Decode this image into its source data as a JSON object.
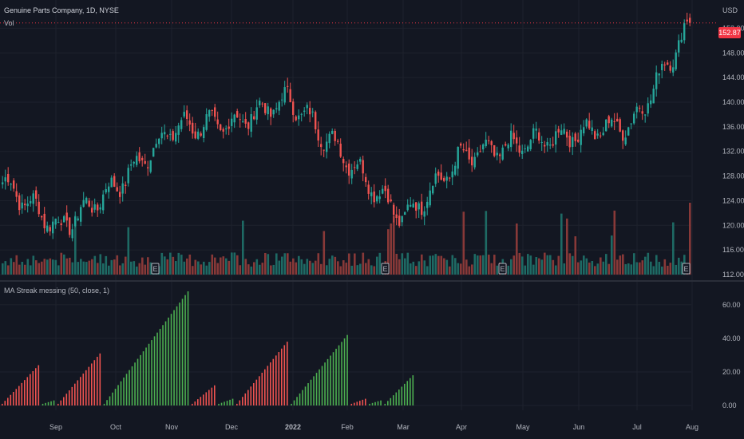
{
  "header": {
    "symbol_title": "Genuine Parts Company, 1D, NYSE",
    "volume_label": "Vol",
    "currency": "USD"
  },
  "indicator": {
    "title": "MA Streak messing (50, close, 1)"
  },
  "last_price": "152.87",
  "earnings_marker": "E",
  "colors": {
    "background": "#131722",
    "grid": "#1e222d",
    "up": "#26a69a",
    "down": "#ef5350",
    "streak_up": "#4caf50",
    "streak_down": "#ef5350",
    "price_line": "#f23645"
  },
  "chart_data": [
    {
      "type": "candlestick",
      "title": "Genuine Parts Company, 1D, NYSE",
      "ylabel": "USD",
      "ylim": [
        112,
        154
      ],
      "yticks": [
        "112.00",
        "116.00",
        "120.00",
        "124.00",
        "128.00",
        "132.00",
        "136.00",
        "140.00",
        "144.00",
        "148.00",
        "152.00"
      ],
      "x_ticks": [
        "Sep",
        "Oct",
        "Nov",
        "Dec",
        "2022",
        "Feb",
        "Mar",
        "Apr",
        "May",
        "Jun",
        "Jul",
        "Aug"
      ],
      "close_anchors": [
        {
          "month": "Aug",
          "close": 127.0
        },
        {
          "month": "Sep",
          "close": 119.5
        },
        {
          "month": "Oct",
          "close": 126.5
        },
        {
          "month": "Nov",
          "close": 136.0
        },
        {
          "month": "Dec",
          "close": 136.5
        },
        {
          "month": "2022",
          "close": 140.5
        },
        {
          "month": "Feb",
          "close": 131.0
        },
        {
          "month": "Mar",
          "close": 121.0
        },
        {
          "month": "Apr",
          "close": 131.0
        },
        {
          "month": "May",
          "close": 133.0
        },
        {
          "month": "Jun",
          "close": 135.0
        },
        {
          "month": "Jul",
          "close": 136.5
        },
        {
          "month": "Aug",
          "close": 152.87
        }
      ],
      "last_price": 152.87
    },
    {
      "type": "bar",
      "title": "Vol",
      "note": "volume bars colored by candle direction; notable spikes near Nov, Feb/Mar and late Jul"
    },
    {
      "type": "bar",
      "title": "MA Streak messing (50, close, 1)",
      "ylim": [
        0,
        68
      ],
      "yticks": [
        "0.00",
        "20.00",
        "40.00",
        "60.00"
      ],
      "streaks": [
        {
          "color": "down",
          "start": 1,
          "end": 24
        },
        {
          "color": "up",
          "start": 1,
          "end": 3
        },
        {
          "color": "down",
          "start": 1,
          "end": 31
        },
        {
          "color": "up",
          "start": 1,
          "end": 68
        },
        {
          "color": "down",
          "start": 1,
          "end": 12
        },
        {
          "color": "up",
          "start": 1,
          "end": 4
        },
        {
          "color": "down",
          "start": 1,
          "end": 38
        },
        {
          "color": "up",
          "start": 1,
          "end": 42
        },
        {
          "color": "down",
          "start": 1,
          "end": 4
        },
        {
          "color": "up",
          "start": 1,
          "end": 3
        },
        {
          "color": "up",
          "start": 1,
          "end": 18
        }
      ]
    }
  ]
}
